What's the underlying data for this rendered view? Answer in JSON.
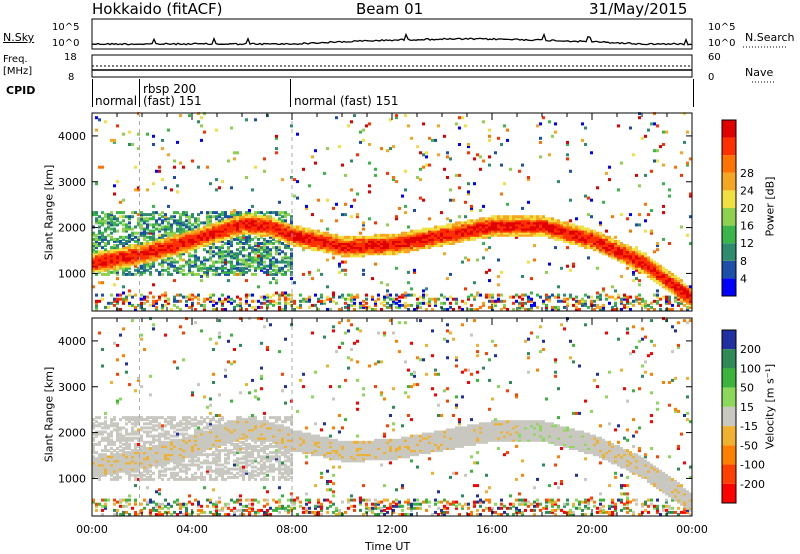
{
  "header": {
    "title": "Hokkaido (fitACF)",
    "beam": "Beam 01",
    "date": "31/May/2015"
  },
  "nsky_panel": {
    "left_label": "N.Sky",
    "left_ticks": [
      "10^5",
      "10^0"
    ],
    "right_ticks": [
      "10^5",
      "10^0"
    ],
    "right_label": "N.Search"
  },
  "freq_panel": {
    "left_label_1": "Freq.",
    "left_label_2": "[MHz]",
    "left_ticks": [
      "18",
      "8"
    ],
    "right_ticks": [
      "60",
      "0"
    ],
    "right_label": "Nave"
  },
  "cpid_panel": {
    "label": "CPID",
    "segments": [
      {
        "line1": "normal",
        "line2": "",
        "start": 0.0,
        "end": 1.9
      },
      {
        "line1": "rbsp 200",
        "line2": "(fast) 151",
        "start": 1.9,
        "end": 8.0
      },
      {
        "line1": "normal (fast) 151",
        "line2": "",
        "start": 8.0,
        "end": 24.0
      }
    ]
  },
  "xaxis": {
    "label": "Time UT",
    "ticks": [
      "00:00",
      "04:00",
      "08:00",
      "12:00",
      "16:00",
      "20:00",
      "00:00"
    ]
  },
  "chart_data": [
    {
      "type": "heatmap",
      "ylabel": "Slant Range [km]",
      "ylim": [
        180,
        4500
      ],
      "yticks": [
        "1000",
        "2000",
        "3000",
        "4000"
      ],
      "xlim_hours": [
        0,
        24
      ],
      "colorbar": {
        "label": "Power [dB]",
        "ticks": [
          "4",
          "8",
          "12",
          "16",
          "20",
          "24",
          "28"
        ],
        "colors": [
          "#0000ff",
          "#1c50a8",
          "#2e8b6e",
          "#3ab54a",
          "#8fd14f",
          "#f0e040",
          "#f5a623",
          "#ff7300",
          "#ff3000",
          "#e00000"
        ]
      },
      "main_echo_band": [
        {
          "t": 0.0,
          "r": 1200
        },
        {
          "t": 2.0,
          "r": 1400
        },
        {
          "t": 4.0,
          "r": 1700
        },
        {
          "t": 6.0,
          "r": 2050
        },
        {
          "t": 7.0,
          "r": 2000
        },
        {
          "t": 8.0,
          "r": 1800
        },
        {
          "t": 10.0,
          "r": 1550
        },
        {
          "t": 12.0,
          "r": 1600
        },
        {
          "t": 14.0,
          "r": 1800
        },
        {
          "t": 16.0,
          "r": 2000
        },
        {
          "t": 18.0,
          "r": 2000
        },
        {
          "t": 20.0,
          "r": 1700
        },
        {
          "t": 22.0,
          "r": 1200
        },
        {
          "t": 24.0,
          "r": 400
        }
      ]
    },
    {
      "type": "heatmap",
      "ylabel": "Slant Range [km]",
      "ylim": [
        180,
        4500
      ],
      "yticks": [
        "1000",
        "2000",
        "3000",
        "4000"
      ],
      "xlim_hours": [
        0,
        24
      ],
      "colorbar": {
        "label": "Velocity [m s⁻¹]",
        "ticks": [
          "200",
          "100",
          "50",
          "15",
          "-15",
          "-50",
          "-100",
          "-200"
        ],
        "colors": [
          "#2030a0",
          "#2e8b57",
          "#3cb43c",
          "#8cd85a",
          "#c8c8c0",
          "#f0b030",
          "#ff8000",
          "#ff4000",
          "#ff0000"
        ]
      }
    }
  ]
}
